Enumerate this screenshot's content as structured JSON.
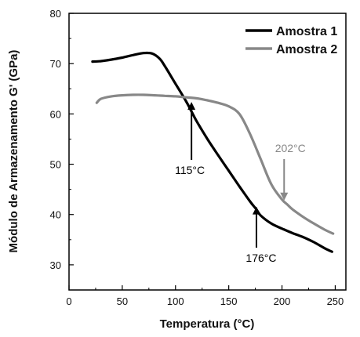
{
  "chart_data": {
    "type": "line",
    "title": "",
    "xlabel": "Temperatura (°C)",
    "ylabel": "Módulo de Armazenamento G' (GPa)",
    "xlim": [
      0,
      260
    ],
    "ylim": [
      25,
      80
    ],
    "xticks": [
      "0",
      "50",
      "100",
      "150",
      "200",
      "250"
    ],
    "yticks": [
      "30",
      "40",
      "50",
      "60",
      "70",
      "80"
    ],
    "legend_position": "top-right",
    "series": [
      {
        "name": "Amostra 1",
        "color": "#000000",
        "x": [
          22,
          30,
          40,
          50,
          60,
          70,
          78,
          85,
          90,
          100,
          110,
          115,
          120,
          130,
          140,
          150,
          160,
          170,
          176,
          180,
          190,
          200,
          210,
          220,
          230,
          240,
          247
        ],
        "y": [
          70.4,
          70.5,
          70.8,
          71.2,
          71.7,
          72.1,
          72.0,
          71.0,
          69.5,
          66.0,
          62.5,
          60.5,
          58.5,
          55.0,
          51.8,
          48.7,
          45.6,
          42.6,
          41.0,
          39.8,
          38.2,
          37.2,
          36.3,
          35.5,
          34.5,
          33.3,
          32.6
        ]
      },
      {
        "name": "Amostra 2",
        "color": "#888888",
        "x": [
          26,
          30,
          40,
          50,
          60,
          70,
          80,
          90,
          100,
          110,
          120,
          130,
          140,
          150,
          160,
          170,
          180,
          190,
          200,
          205,
          210,
          220,
          230,
          240,
          248
        ],
        "y": [
          62.2,
          63.0,
          63.5,
          63.7,
          63.8,
          63.8,
          63.7,
          63.6,
          63.5,
          63.3,
          63.1,
          62.7,
          62.2,
          61.5,
          60.0,
          56.0,
          51.0,
          46.0,
          43.0,
          42.0,
          41.0,
          39.5,
          38.2,
          37.0,
          36.2
        ]
      }
    ],
    "annotations": [
      {
        "text": "115°C",
        "x": 115,
        "y": 63.0,
        "color": "#000000"
      },
      {
        "text": "176°C",
        "x": 176,
        "y": 42.2,
        "color": "#000000"
      },
      {
        "text": "202°C",
        "x": 202,
        "y": 42.8,
        "color": "#888888"
      }
    ]
  }
}
